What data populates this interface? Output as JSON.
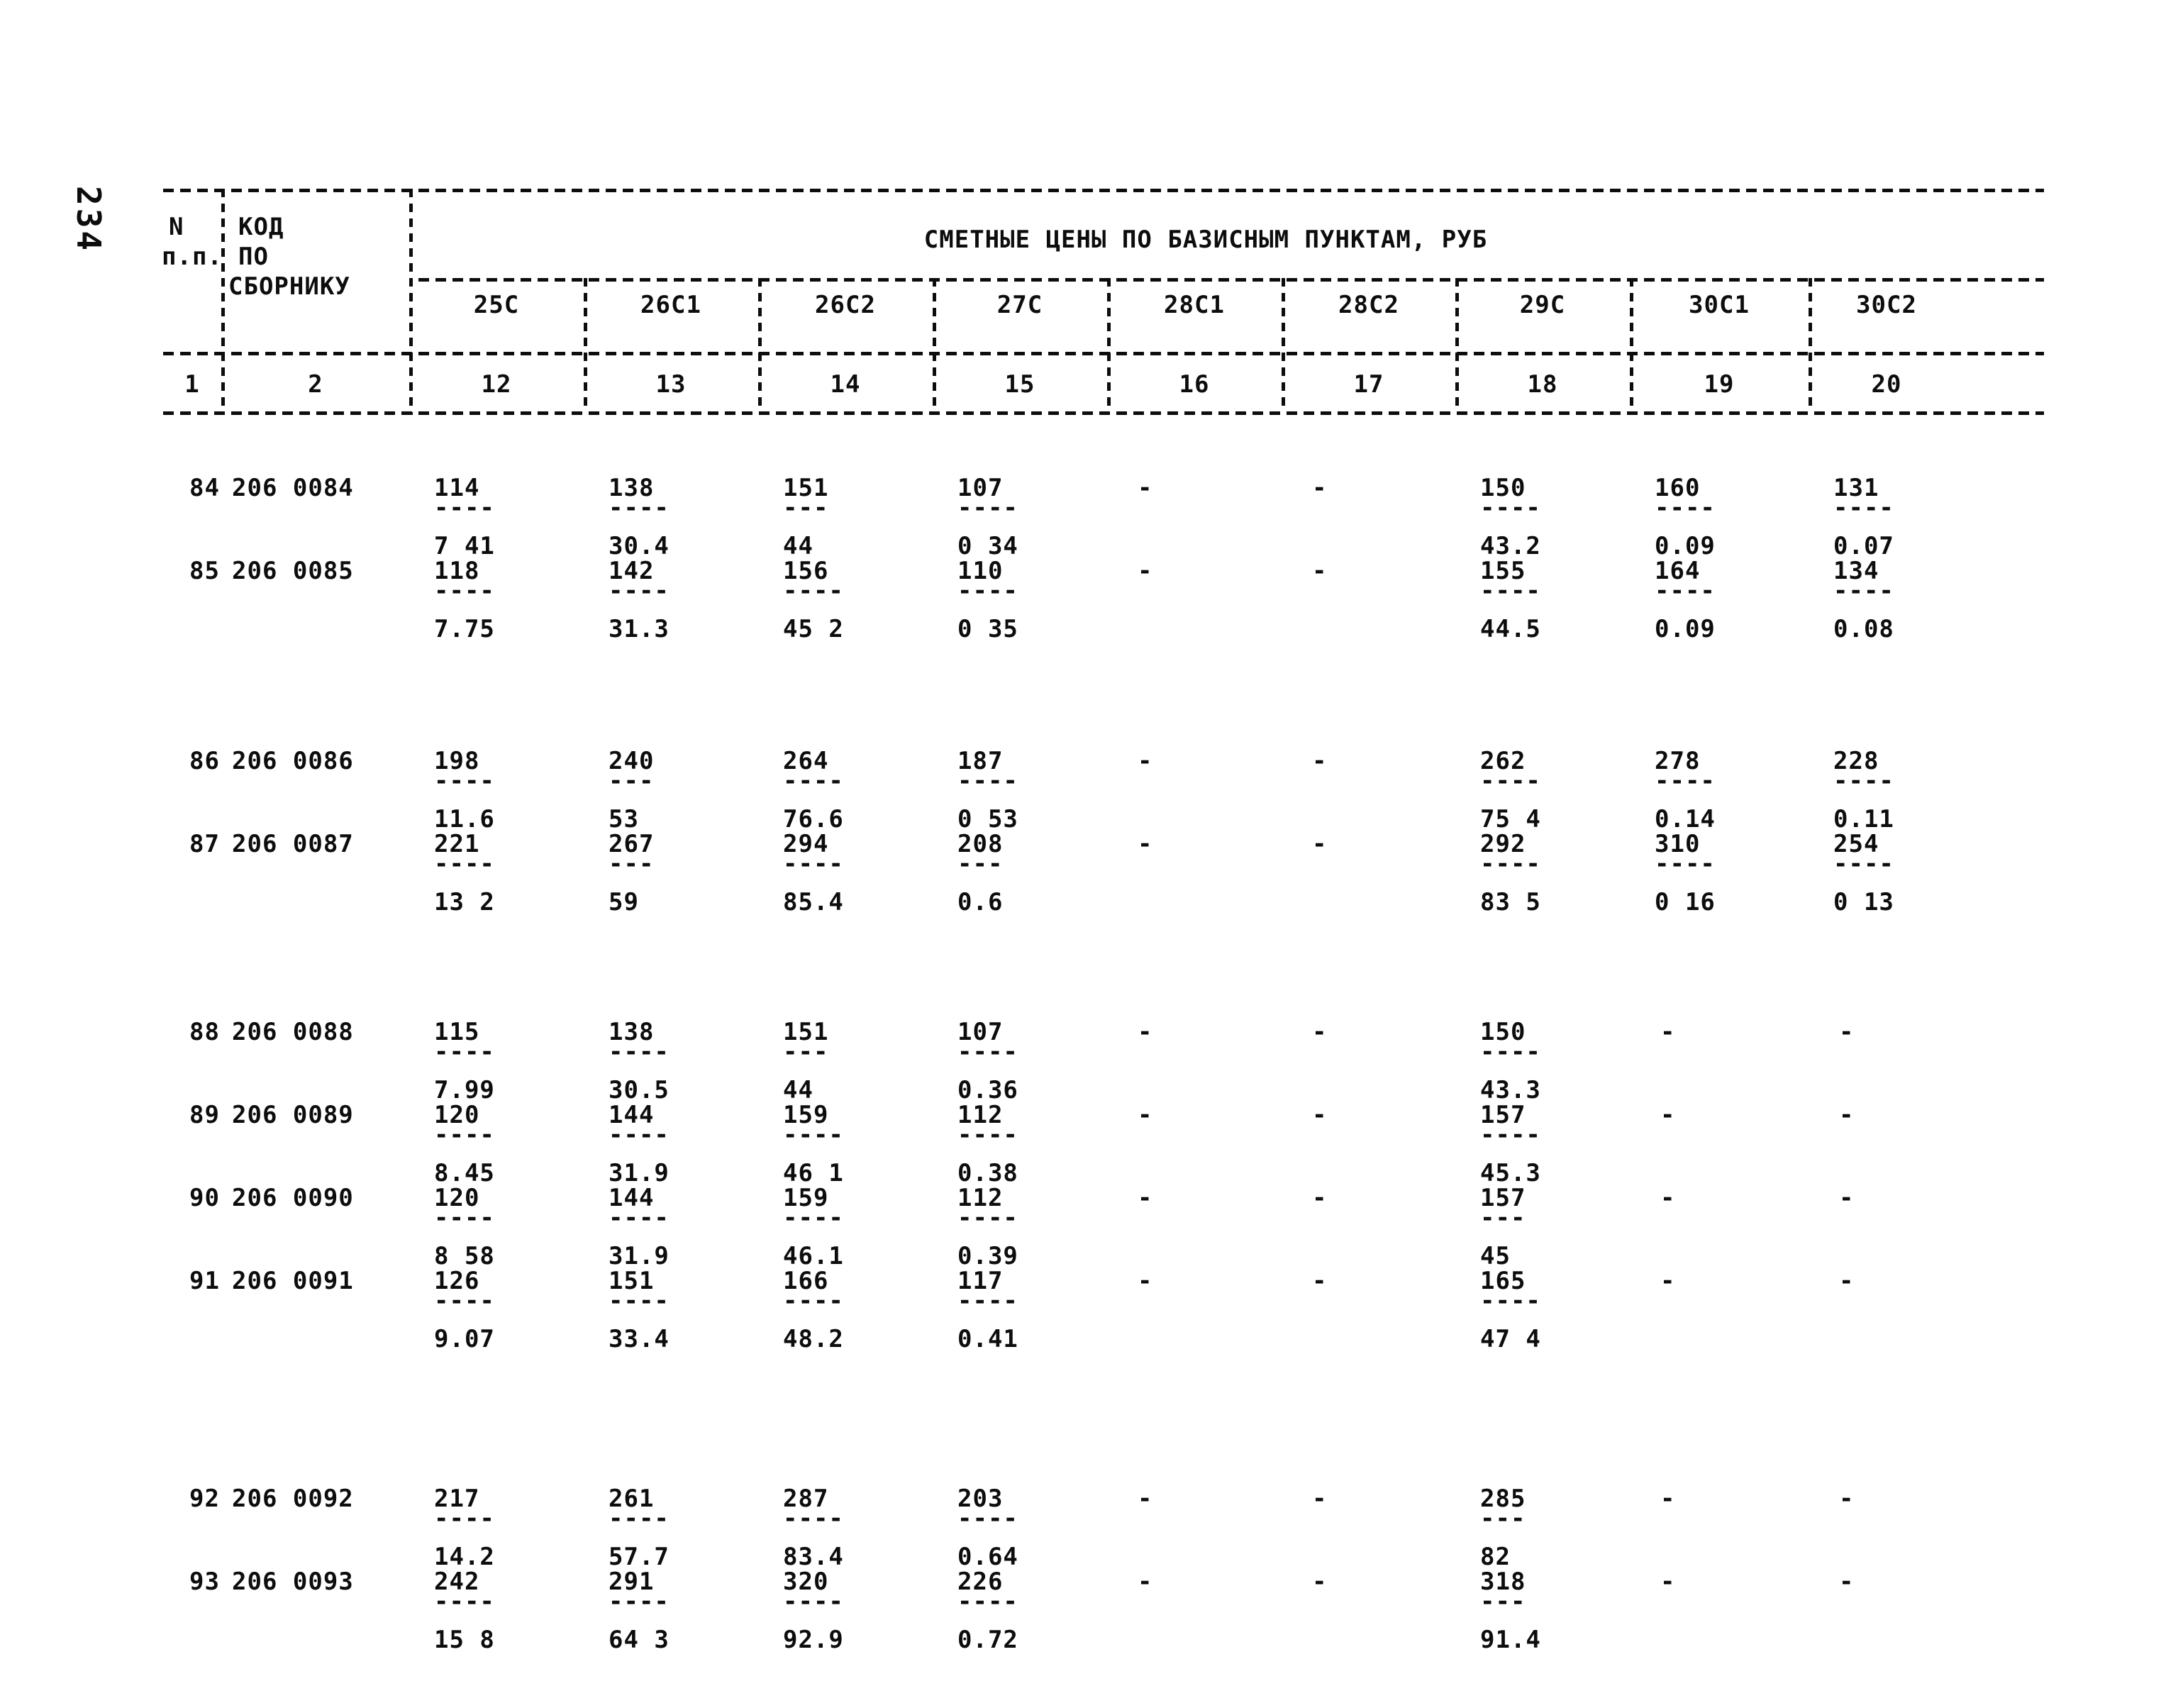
{
  "page": {
    "side_number": "234"
  },
  "header": {
    "col_n_line1": "N",
    "col_n_line2": "п.п.",
    "col_code_line1": "КОД",
    "col_code_line2": "ПО",
    "col_code_line3": "СБОРНИКУ",
    "span_title": "СМЕТНЫЕ ЦЕНЫ ПО БАЗИСНЫМ ПУНКТАМ, РУБ",
    "price_columns": [
      "25С",
      "26С1",
      "26С2",
      "27С",
      "28С1",
      "28С2",
      "29С",
      "30С1",
      "30С2"
    ],
    "index_numbers": [
      "1",
      "2",
      "12",
      "13",
      "14",
      "15",
      "16",
      "17",
      "18",
      "19",
      "20"
    ]
  },
  "rows": [
    {
      "n": "84",
      "code": "206 0084",
      "cells": [
        {
          "t": "114",
          "d": "----",
          "b": "7 41"
        },
        {
          "t": "138",
          "d": "----",
          "b": "30.4"
        },
        {
          "t": "151",
          "d": "---",
          "b": "44"
        },
        {
          "t": "107",
          "d": "----",
          "b": "0 34"
        },
        {
          "t": "-"
        },
        {
          "t": "-"
        },
        {
          "t": "150",
          "d": "----",
          "b": "43.2"
        },
        {
          "t": "160",
          "d": "----",
          "b": "0.09"
        },
        {
          "t": "131",
          "d": "----",
          "b": "0.07"
        }
      ]
    },
    {
      "n": "85",
      "code": "206 0085",
      "cells": [
        {
          "t": "118",
          "d": "----",
          "b": "7.75"
        },
        {
          "t": "142",
          "d": "----",
          "b": "31.3"
        },
        {
          "t": "156",
          "d": "----",
          "b": "45 2"
        },
        {
          "t": "110",
          "d": "----",
          "b": "0 35"
        },
        {
          "t": "-"
        },
        {
          "t": "-"
        },
        {
          "t": "155",
          "d": "----",
          "b": "44.5"
        },
        {
          "t": "164",
          "d": "----",
          "b": "0.09"
        },
        {
          "t": "134",
          "d": "----",
          "b": "0.08"
        }
      ]
    },
    {
      "n": "86",
      "code": "206 0086",
      "cells": [
        {
          "t": "198",
          "d": "----",
          "b": "11.6"
        },
        {
          "t": "240",
          "d": "---",
          "b": "53"
        },
        {
          "t": "264",
          "d": "----",
          "b": "76.6"
        },
        {
          "t": "187",
          "d": "----",
          "b": "0 53"
        },
        {
          "t": "-"
        },
        {
          "t": "-"
        },
        {
          "t": "262",
          "d": "----",
          "b": "75 4"
        },
        {
          "t": "278",
          "d": "----",
          "b": "0.14"
        },
        {
          "t": "228",
          "d": "----",
          "b": "0.11"
        }
      ]
    },
    {
      "n": "87",
      "code": "206 0087",
      "cells": [
        {
          "t": "221",
          "d": "----",
          "b": "13 2"
        },
        {
          "t": "267",
          "d": "---",
          "b": "59"
        },
        {
          "t": "294",
          "d": "----",
          "b": "85.4"
        },
        {
          "t": "208",
          "d": "---",
          "b": "0.6"
        },
        {
          "t": "-"
        },
        {
          "t": "-"
        },
        {
          "t": "292",
          "d": "----",
          "b": "83 5"
        },
        {
          "t": "310",
          "d": "----",
          "b": "0 16"
        },
        {
          "t": "254",
          "d": "----",
          "b": "0 13"
        }
      ]
    },
    {
      "n": "88",
      "code": "206 0088",
      "cells": [
        {
          "t": "115",
          "d": "----",
          "b": "7.99"
        },
        {
          "t": "138",
          "d": "----",
          "b": "30.5"
        },
        {
          "t": "151",
          "d": "---",
          "b": "44"
        },
        {
          "t": "107",
          "d": "----",
          "b": "0.36"
        },
        {
          "t": "-"
        },
        {
          "t": "-"
        },
        {
          "t": "150",
          "d": "----",
          "b": "43.3"
        },
        {
          "t": "-"
        },
        {
          "t": "-"
        }
      ]
    },
    {
      "n": "89",
      "code": "206 0089",
      "cells": [
        {
          "t": "120",
          "d": "----",
          "b": "8.45"
        },
        {
          "t": "144",
          "d": "----",
          "b": "31.9"
        },
        {
          "t": "159",
          "d": "----",
          "b": "46 1"
        },
        {
          "t": "112",
          "d": "----",
          "b": "0.38"
        },
        {
          "t": "-"
        },
        {
          "t": "-"
        },
        {
          "t": "157",
          "d": "----",
          "b": "45.3"
        },
        {
          "t": "-"
        },
        {
          "t": "-"
        }
      ]
    },
    {
      "n": "90",
      "code": "206 0090",
      "cells": [
        {
          "t": "120",
          "d": "----",
          "b": "8 58"
        },
        {
          "t": "144",
          "d": "----",
          "b": "31.9"
        },
        {
          "t": "159",
          "d": "----",
          "b": "46.1"
        },
        {
          "t": "112",
          "d": "----",
          "b": "0.39"
        },
        {
          "t": "-"
        },
        {
          "t": "-"
        },
        {
          "t": "157",
          "d": "---",
          "b": "45"
        },
        {
          "t": "-"
        },
        {
          "t": "-"
        }
      ]
    },
    {
      "n": "91",
      "code": "206 0091",
      "cells": [
        {
          "t": "126",
          "d": "----",
          "b": "9.07"
        },
        {
          "t": "151",
          "d": "----",
          "b": "33.4"
        },
        {
          "t": "166",
          "d": "----",
          "b": "48.2"
        },
        {
          "t": "117",
          "d": "----",
          "b": "0.41"
        },
        {
          "t": "-"
        },
        {
          "t": "-"
        },
        {
          "t": "165",
          "d": "----",
          "b": "47 4"
        },
        {
          "t": "-"
        },
        {
          "t": "-"
        }
      ]
    },
    {
      "n": "92",
      "code": "206 0092",
      "cells": [
        {
          "t": "217",
          "d": "----",
          "b": "14.2"
        },
        {
          "t": "261",
          "d": "----",
          "b": "57.7"
        },
        {
          "t": "287",
          "d": "----",
          "b": "83.4"
        },
        {
          "t": "203",
          "d": "----",
          "b": "0.64"
        },
        {
          "t": "-"
        },
        {
          "t": "-"
        },
        {
          "t": "285",
          "d": "---",
          "b": "82"
        },
        {
          "t": "-"
        },
        {
          "t": "-"
        }
      ]
    },
    {
      "n": "93",
      "code": "206 0093",
      "cells": [
        {
          "t": "242",
          "d": "----",
          "b": "15 8"
        },
        {
          "t": "291",
          "d": "----",
          "b": "64 3"
        },
        {
          "t": "320",
          "d": "----",
          "b": "92.9"
        },
        {
          "t": "226",
          "d": "----",
          "b": "0.72"
        },
        {
          "t": "-"
        },
        {
          "t": "-"
        },
        {
          "t": "318",
          "d": "---",
          "b": "91.4"
        },
        {
          "t": "-"
        },
        {
          "t": "-"
        }
      ]
    }
  ]
}
